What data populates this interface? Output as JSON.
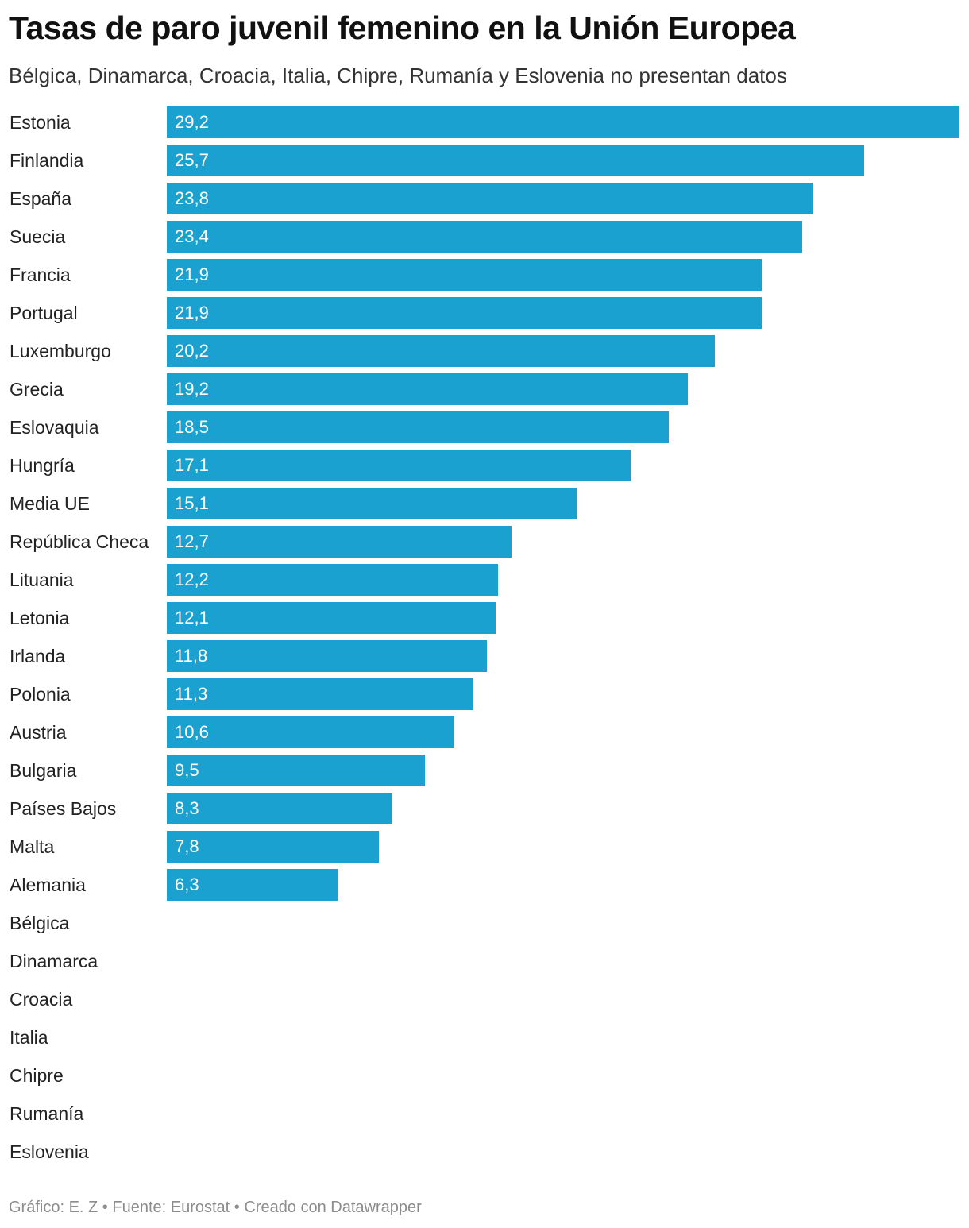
{
  "chart_data": {
    "type": "bar",
    "orientation": "horizontal",
    "title": "Tasas de paro juvenil femenino en la Unión Europea",
    "subtitle": "Bélgica, Dinamarca, Croacia, Italia, Chipre, Rumanía y Eslovenia no presentan datos",
    "categories": [
      "Estonia",
      "Finlandia",
      "España",
      "Suecia",
      "Francia",
      "Portugal",
      "Luxemburgo",
      "Grecia",
      "Eslovaquia",
      "Hungría",
      "Media UE",
      "República Checa",
      "Lituania",
      "Letonia",
      "Irlanda",
      "Polonia",
      "Austria",
      "Bulgaria",
      "Países Bajos",
      "Malta",
      "Alemania",
      "Bélgica",
      "Dinamarca",
      "Croacia",
      "Italia",
      "Chipre",
      "Rumanía",
      "Eslovenia"
    ],
    "values": [
      29.2,
      25.7,
      23.8,
      23.4,
      21.9,
      21.9,
      20.2,
      19.2,
      18.5,
      17.1,
      15.1,
      12.7,
      12.2,
      12.1,
      11.8,
      11.3,
      10.6,
      9.5,
      8.3,
      7.8,
      6.3,
      null,
      null,
      null,
      null,
      null,
      null,
      null
    ],
    "value_labels": [
      "29,2",
      "25,7",
      "23,8",
      "23,4",
      "21,9",
      "21,9",
      "20,2",
      "19,2",
      "18,5",
      "17,1",
      "15,1",
      "12,7",
      "12,2",
      "12,1",
      "11,8",
      "11,3",
      "10,6",
      "9,5",
      "8,3",
      "7,8",
      "6,3",
      "",
      "",
      "",
      "",
      "",
      "",
      ""
    ],
    "xlim": [
      0,
      29.2
    ],
    "bar_color": "#1aa1cf",
    "value_label_color": "#ffffff",
    "grid": false,
    "legend": "none",
    "source": "Gráfico: E. Z • Fuente: Eurostat • Creado con Datawrapper"
  }
}
